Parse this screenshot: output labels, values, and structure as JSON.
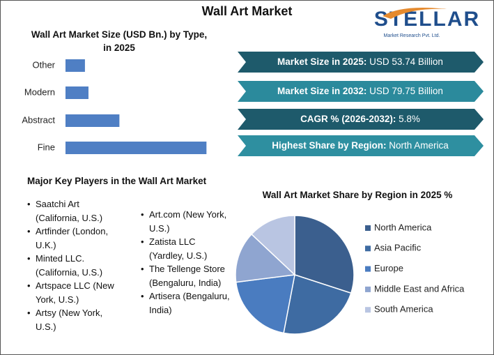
{
  "title": "Wall Art Market",
  "logo": {
    "name": "STELLAR",
    "tagline": "Market Research Pvt. Ltd."
  },
  "stats": [
    {
      "label": "Market Size in 2025:",
      "value": "USD 53.74 Billion"
    },
    {
      "label": "Market Size in 2032:",
      "value": "USD 79.75 Billion"
    },
    {
      "label": "CAGR % (2026-2032):",
      "value": "5.8%"
    },
    {
      "label": "Highest Share by Region:",
      "value": "North America"
    }
  ],
  "players": {
    "heading": "Major Key Players in the Wall Art Market",
    "column1": [
      "Saatchi Art (California, U.S.)",
      "Artfinder (London, U.K.)",
      "Minted LLC. (California, U.S.)",
      "Artspace LLC (New York, U.S.)",
      "Artsy (New York, U.S.)"
    ],
    "column2": [
      "Art.com (New York, U.S.)",
      "Zatista LLC (Yardley, U.S.)",
      "The Tellenge Store (Bengaluru, India)",
      "Artisera (Bengaluru, India)"
    ]
  },
  "chart_data": [
    {
      "type": "bar",
      "orientation": "horizontal",
      "title": "Wall Art Market Size (USD Bn.) by Type, in 2025",
      "categories": [
        "Other",
        "Modern",
        "Abstract",
        "Fine"
      ],
      "values": [
        4.4,
        5.2,
        12.2,
        31.9
      ],
      "color": "#4f7fc4",
      "xlim": [
        0,
        35
      ]
    },
    {
      "type": "pie",
      "title": "Wall Art Market Share by Region in 2025 %",
      "categories": [
        "North America",
        "Asia Pacific",
        "Europe",
        "Middle East and Africa",
        "South America"
      ],
      "values": [
        30,
        23,
        20,
        14,
        13
      ],
      "colors": [
        "#3b5f8e",
        "#3e6ba2",
        "#4a7cc0",
        "#8fa5d0",
        "#b9c5e2"
      ]
    }
  ]
}
